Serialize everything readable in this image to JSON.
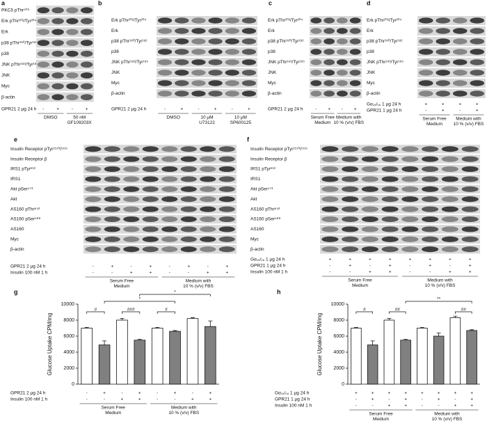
{
  "panels": [
    {
      "letter": "a",
      "rows": [
        "PKCδ pThr⁵⁰⁵",
        "Erk pThr²⁰²/Tyr²⁰⁴",
        "Erk",
        "p38 pThr¹⁸⁰/Tyr¹⁸²",
        "p38",
        "JNK pThr¹⁸³/Tyr¹⁸⁵",
        "JNK",
        "Myc",
        "β-actin"
      ],
      "conditions": [
        {
          "label": "GPR21 2 µg 24 h",
          "signs": [
            "-",
            "+",
            "-",
            "+"
          ]
        }
      ],
      "groups": [
        [
          "DMSO"
        ],
        [
          "50 nM",
          "GF109203X"
        ]
      ]
    },
    {
      "letter": "b",
      "rows": [
        "Erk pThr²⁰²/Tyr²⁰⁴",
        "Erk",
        "p38 pThr¹⁸⁰/Tyr¹⁸²",
        "p38",
        "JNK pThr¹⁸³/Tyr¹⁸⁵",
        "JNK",
        "Myc",
        "β-actin"
      ],
      "conditions": [
        {
          "label": "GPR21 2 µg 24 h",
          "signs": [
            "-",
            "+",
            "-",
            "+",
            "-",
            "+"
          ]
        }
      ],
      "groups": [
        [
          "DMSO"
        ],
        [
          "10 µM",
          "U73122"
        ],
        [
          "10 µM",
          "SP600125"
        ]
      ]
    },
    {
      "letter": "c",
      "rows": [
        "Erk pThr²⁰²/Tyr²⁰⁴",
        "Erk",
        "p38 pThr¹⁸⁰/Tyr¹⁸²",
        "p38",
        "JNK pThr¹⁸³/Tyr¹⁸⁵",
        "JNK",
        "Myc",
        "β-actin"
      ],
      "conditions": [
        {
          "label": "GPR21 2 µg 24 h",
          "signs": [
            "-",
            "+",
            "-",
            "+"
          ]
        }
      ],
      "groups": [
        [
          "Serum Free",
          "Medium"
        ],
        [
          "Medium with",
          "10 % (v/v) FBS"
        ]
      ]
    },
    {
      "letter": "d",
      "rows": [
        "Erk pThr²⁰²/Tyr²⁰⁴",
        "Erk",
        "p38 pThr¹⁸⁰/Tyr¹⁸²",
        "p38",
        "JNK pThr¹⁸³/Tyr¹⁸⁵",
        "JNK",
        "Myc",
        "β-actin"
      ],
      "conditions": [
        {
          "label": "Gα₁₅/₁₆ 1 µg 24 h",
          "signs": [
            "+",
            "+",
            "+",
            "+"
          ]
        },
        {
          "label": "GPR21 1 µg 24 h",
          "signs": [
            "-",
            "+",
            "-",
            "+"
          ]
        }
      ],
      "groups": [
        [
          "Serum Free",
          "Medium"
        ],
        [
          "Medium with",
          "10 % (v/v) FBS"
        ]
      ]
    },
    {
      "letter": "e",
      "rows": [
        "Insulin Receptor pTyr¹¹⁵⁰/¹¹⁵¹",
        "Insulin Receptor β",
        "IRS1 pTyr⁶¹²",
        "IRS1",
        "Akt pSer⁴⁷³",
        "Akt",
        "AS160 pThr⁶⁴²",
        "AS160 pSer⁵⁸⁸",
        "AS160",
        "Myc",
        "β-actin"
      ],
      "conditions": [
        {
          "label": "GPR21 2 µg 24 h",
          "signs": [
            "-",
            "+",
            "-",
            "+",
            "-",
            "+",
            "-",
            "+"
          ]
        },
        {
          "label": "Insulin 100 nM 1 h",
          "signs": [
            "-",
            "-",
            "+",
            "+",
            "-",
            "-",
            "+",
            "+"
          ]
        }
      ],
      "groups": [
        [
          "Serum Free",
          "Medium"
        ],
        [
          "Medium with",
          "10 % (v/v) FBS"
        ]
      ]
    },
    {
      "letter": "f",
      "rows": [
        "Insulin Receptor pTyr¹¹⁵⁰/¹¹⁵¹",
        "Insulin Receptor β",
        "IRS1 pTyr⁶¹²",
        "IRS1",
        "Akt pSer⁴⁷³",
        "Akt",
        "AS160 pThr⁶⁴²",
        "AS160 pSer⁵⁸⁸",
        "AS160",
        "Myc",
        "β-actin"
      ],
      "conditions": [
        {
          "label": "Gα₁₅/₁₆ 1 µg 24 h",
          "signs": [
            "+",
            "+",
            "+",
            "+",
            "+",
            "+",
            "+",
            "+"
          ]
        },
        {
          "label": "GPR21 1 µg 24 h",
          "signs": [
            "-",
            "+",
            "-",
            "+",
            "-",
            "+",
            "-",
            "+"
          ]
        },
        {
          "label": "Insulin 100 nM 1 h",
          "signs": [
            "-",
            "-",
            "+",
            "+",
            "-",
            "-",
            "+",
            "+"
          ]
        }
      ],
      "groups": [
        [
          "Serum Free",
          "Medium"
        ],
        [
          "Medium with",
          "10 % (v/v) FBS"
        ]
      ]
    }
  ],
  "chart_data": [
    {
      "type": "bar",
      "letter": "g",
      "ylabel": "Glucose Uptake CPM/mg",
      "values": [
        7000,
        4900,
        8000,
        5500,
        7000,
        6600,
        8200,
        7200
      ],
      "errors": [
        100,
        500,
        200,
        100,
        100,
        100,
        100,
        700
      ],
      "colors": [
        "#ffffff",
        "#808080",
        "#ffffff",
        "#808080",
        "#ffffff",
        "#808080",
        "#ffffff",
        "#808080"
      ],
      "ylim": [
        0,
        10000
      ],
      "yticks": [
        0,
        2000,
        4000,
        6000,
        8000,
        10000
      ],
      "annotations": [
        "#",
        "###",
        "#",
        "*",
        "*"
      ],
      "conditions": [
        {
          "label": "GPR21 2 µg 24 h",
          "signs": [
            "-",
            "+",
            "-",
            "+",
            "-",
            "+",
            "-",
            "+"
          ]
        },
        {
          "label": "Insulin 100 nM 1 h",
          "signs": [
            "-",
            "-",
            "+",
            "+",
            "-",
            "-",
            "+",
            "+"
          ]
        }
      ],
      "groups": [
        [
          "Serum Free",
          "Medium"
        ],
        [
          "Medium with",
          "10 % (v/v) FBS"
        ]
      ]
    },
    {
      "type": "bar",
      "letter": "h",
      "ylabel": "Glucose Uptake CPM/mg",
      "values": [
        7000,
        4900,
        8000,
        5500,
        7000,
        6000,
        8300,
        6700
      ],
      "errors": [
        100,
        500,
        200,
        100,
        100,
        400,
        200,
        100
      ],
      "colors": [
        "#ffffff",
        "#808080",
        "#ffffff",
        "#808080",
        "#ffffff",
        "#808080",
        "#ffffff",
        "#808080"
      ],
      "ylim": [
        0,
        10000
      ],
      "yticks": [
        0,
        2000,
        4000,
        6000,
        8000,
        10000
      ],
      "annotations": [
        "#",
        "##",
        "**",
        "##"
      ],
      "conditions": [
        {
          "label": "Gα₁₅/₁₆ 1 µg 24 h",
          "signs": [
            "+",
            "+",
            "+",
            "+",
            "+",
            "+",
            "+",
            "+"
          ]
        },
        {
          "label": "GPR21 1 µg 24 h",
          "signs": [
            "-",
            "+",
            "-",
            "+",
            "-",
            "+",
            "-",
            "+"
          ]
        },
        {
          "label": "Insulin 100 nM 1 h",
          "signs": [
            "-",
            "-",
            "+",
            "+",
            "-",
            "-",
            "+",
            "+"
          ]
        }
      ],
      "groups": [
        [
          "Serum Free",
          "Medium"
        ],
        [
          "Medium with",
          "10 % (v/v) FBS"
        ]
      ]
    }
  ]
}
